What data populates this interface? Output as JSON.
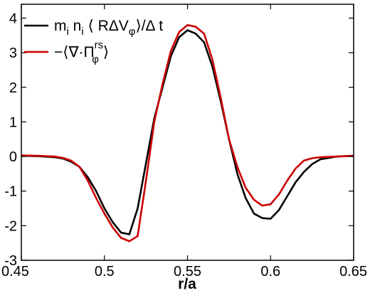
{
  "chart_data": {
    "type": "line",
    "title": "",
    "xlabel": "r/a",
    "ylabel": "",
    "xlim": [
      0.45,
      0.65
    ],
    "ylim": [
      -3,
      4.4
    ],
    "grid": false,
    "legend_position": "top-left",
    "x_ticks": [
      "0.45",
      "0.5",
      "0.55",
      "0.6",
      "0.65"
    ],
    "y_ticks": [
      "-3",
      "-2",
      "-1",
      "0",
      "1",
      "2",
      "3",
      "4"
    ],
    "colors": {
      "series_1": "#000000",
      "series_2": "#cc0000"
    },
    "series": [
      {
        "name": "m_i n_i ⟨ RΔV_φ⟩/Δ t",
        "color": "#000000",
        "x": [
          0.45,
          0.46,
          0.47,
          0.475,
          0.48,
          0.485,
          0.49,
          0.495,
          0.5,
          0.505,
          0.51,
          0.515,
          0.52,
          0.525,
          0.53,
          0.535,
          0.54,
          0.545,
          0.55,
          0.555,
          0.56,
          0.565,
          0.57,
          0.575,
          0.58,
          0.585,
          0.59,
          0.595,
          0.6,
          0.605,
          0.61,
          0.615,
          0.62,
          0.625,
          0.63,
          0.64,
          0.65
        ],
        "y": [
          0.02,
          0.01,
          -0.02,
          -0.06,
          -0.15,
          -0.3,
          -0.6,
          -1.0,
          -1.5,
          -1.9,
          -2.2,
          -2.25,
          -1.5,
          -0.2,
          1.1,
          2.0,
          2.9,
          3.45,
          3.65,
          3.55,
          3.3,
          2.6,
          1.6,
          0.5,
          -0.5,
          -1.2,
          -1.65,
          -1.78,
          -1.8,
          -1.55,
          -1.15,
          -0.75,
          -0.45,
          -0.22,
          -0.08,
          0.0,
          0.02
        ]
      },
      {
        "name": "−⟨∇·Π_φ^rs⟩",
        "color": "#cc0000",
        "x": [
          0.45,
          0.46,
          0.47,
          0.475,
          0.48,
          0.485,
          0.49,
          0.495,
          0.5,
          0.505,
          0.51,
          0.515,
          0.52,
          0.525,
          0.53,
          0.535,
          0.54,
          0.545,
          0.55,
          0.555,
          0.56,
          0.565,
          0.57,
          0.575,
          0.58,
          0.585,
          0.59,
          0.595,
          0.6,
          0.605,
          0.61,
          0.615,
          0.62,
          0.625,
          0.63,
          0.64,
          0.65
        ],
        "y": [
          0.03,
          0.02,
          0.0,
          -0.04,
          -0.12,
          -0.3,
          -0.7,
          -1.2,
          -1.65,
          -2.05,
          -2.35,
          -2.45,
          -2.3,
          -0.7,
          1.0,
          2.1,
          3.05,
          3.6,
          3.8,
          3.75,
          3.55,
          2.8,
          1.7,
          0.5,
          -0.3,
          -0.9,
          -1.25,
          -1.42,
          -1.38,
          -1.1,
          -0.7,
          -0.35,
          -0.12,
          -0.05,
          -0.02,
          0.0,
          0.02
        ]
      }
    ],
    "legend": [
      {
        "main": "m",
        "sub": "i",
        "main2": " n",
        "sub2": "i",
        "main3": " ⟨ RΔV",
        "sub3": "φ",
        "main4": "⟩/Δ t"
      },
      {
        "main": "−⟨∇·Π",
        "sub": "φ",
        "sup": "rs",
        "main2": "⟩"
      }
    ]
  }
}
